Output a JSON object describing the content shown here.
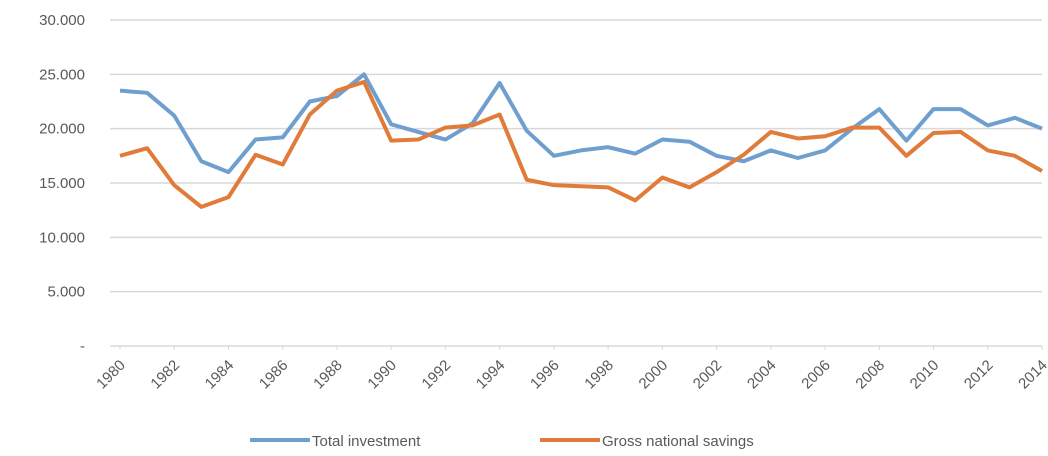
{
  "chart_data": {
    "type": "line",
    "x": [
      1980,
      1981,
      1982,
      1983,
      1984,
      1985,
      1986,
      1987,
      1988,
      1989,
      1990,
      1991,
      1992,
      1993,
      1994,
      1995,
      1996,
      1997,
      1998,
      1999,
      2000,
      2001,
      2002,
      2003,
      2004,
      2005,
      2006,
      2007,
      2008,
      2009,
      2010,
      2011,
      2012,
      2013,
      2014
    ],
    "series": [
      {
        "name": "Total investment",
        "color": "#6f9fcf",
        "values": [
          23.5,
          23.3,
          21.2,
          17.0,
          16.0,
          19.0,
          19.2,
          22.5,
          23.0,
          25.0,
          20.4,
          19.7,
          19.0,
          20.5,
          24.2,
          19.8,
          17.5,
          18.0,
          18.3,
          17.7,
          19.0,
          18.8,
          17.5,
          17.0,
          18.0,
          17.3,
          18.0,
          20.0,
          21.8,
          18.9,
          21.8,
          21.8,
          20.3,
          21.0,
          20.0
        ]
      },
      {
        "name": "Gross national savings",
        "color": "#e07b39",
        "values": [
          17.5,
          18.2,
          14.8,
          12.8,
          13.7,
          17.6,
          16.7,
          21.3,
          23.5,
          24.3,
          18.9,
          19.0,
          20.1,
          20.3,
          21.3,
          15.3,
          14.8,
          14.7,
          14.6,
          13.4,
          15.5,
          14.6,
          16.0,
          17.6,
          19.7,
          19.1,
          19.3,
          20.1,
          20.1,
          17.5,
          19.6,
          19.7,
          18.0,
          17.5,
          16.1
        ]
      }
    ],
    "xlim": [
      1980,
      2014
    ],
    "xticks": [
      1980,
      1982,
      1984,
      1986,
      1988,
      1990,
      1992,
      1994,
      1996,
      1998,
      2000,
      2002,
      2004,
      2006,
      2008,
      2010,
      2012,
      2014
    ],
    "ylim": [
      0,
      30
    ],
    "yticks": [
      {
        "value": 0,
        "label": "-"
      },
      {
        "value": 5,
        "label": "5.000"
      },
      {
        "value": 10,
        "label": "10.000"
      },
      {
        "value": 15,
        "label": "15.000"
      },
      {
        "value": 20,
        "label": "20.000"
      },
      {
        "value": 25,
        "label": "25.000"
      },
      {
        "value": 30,
        "label": "30.000"
      }
    ],
    "grid": true,
    "legend": "bottom"
  }
}
